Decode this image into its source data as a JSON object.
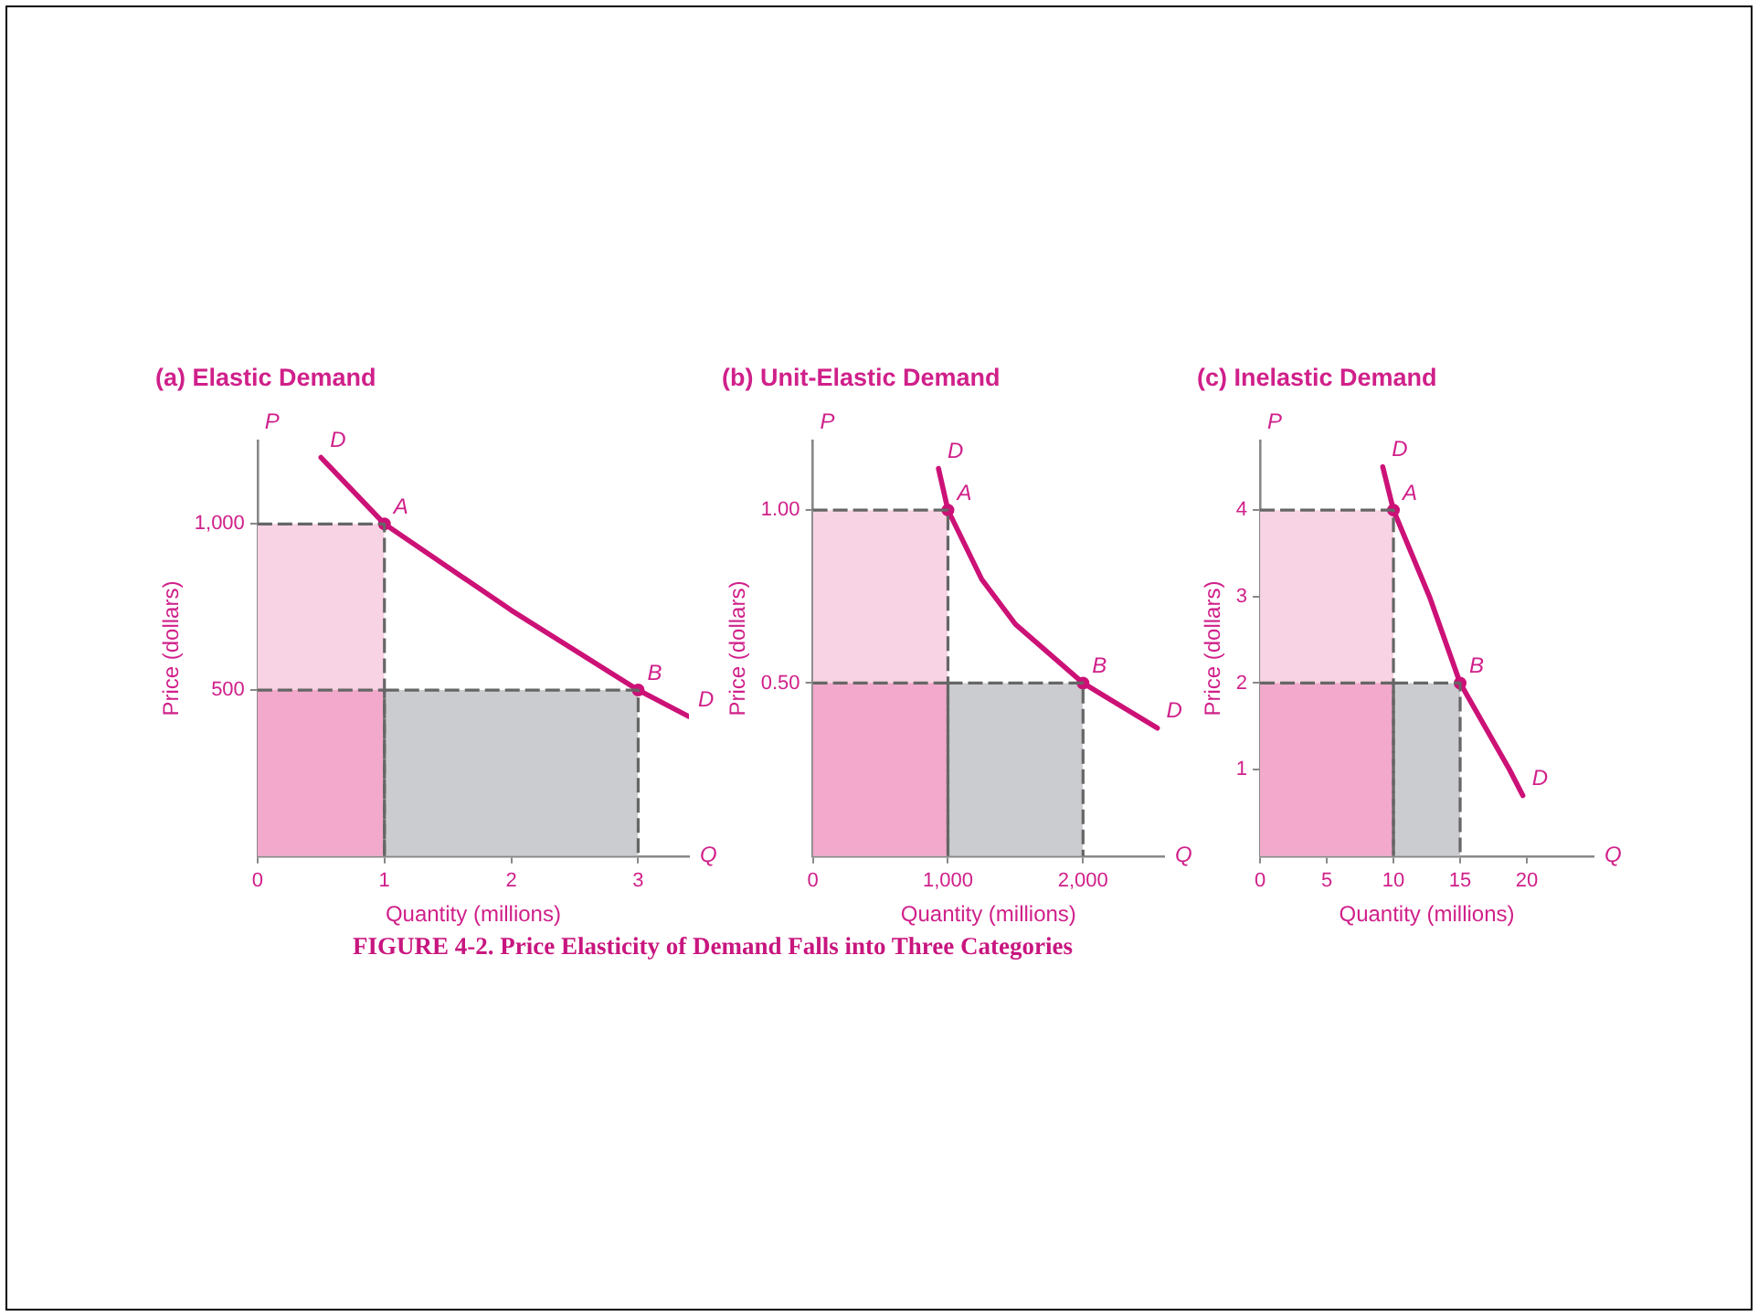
{
  "chart_data": [
    {
      "type": "line",
      "title": "(a) Elastic Demand",
      "xlabel": "Quantity (millions)",
      "ylabel": "Price (dollars)",
      "grid": false,
      "legend": false,
      "xlim": [
        0,
        3.4
      ],
      "ylim": [
        0,
        1250
      ],
      "xticks": [
        0,
        1,
        2,
        3
      ],
      "yticks": [
        500,
        {
          "value": 1000,
          "label": "1,000"
        }
      ],
      "series": [
        {
          "type": "area",
          "color": "#f8d3e3",
          "line_style": "dashed",
          "x": [
            0,
            1
          ],
          "values": [
            1000,
            1000
          ]
        },
        {
          "type": "area",
          "color": "#f2a9cb",
          "line_style": "dashed",
          "x": [
            0,
            1
          ],
          "values": [
            500,
            500
          ]
        },
        {
          "type": "area",
          "color": "#cbcccf",
          "line_style": "dashed",
          "x": [
            1,
            3
          ],
          "values": [
            500,
            500
          ]
        },
        {
          "color": "#cc1177",
          "line_style": "solid",
          "marker": "none",
          "x": [
            0.5,
            1,
            2,
            3,
            3.4
          ],
          "values": [
            1200,
            1000,
            740,
            500,
            420
          ]
        },
        {
          "type": "scatter",
          "color": "#cc1177",
          "marker": "circle",
          "x": [
            1,
            3
          ],
          "values": [
            1000,
            500
          ]
        }
      ],
      "annotations": [
        "P",
        "Q",
        {
          "text": "D",
          "x": 0.5,
          "y": 1200
        },
        {
          "text": "A",
          "x": 1,
          "y": 1000
        },
        {
          "text": "B",
          "x": 3,
          "y": 500
        },
        {
          "text": "D",
          "x": 3.4,
          "y": 420
        }
      ]
    },
    {
      "type": "line",
      "title": "(b) Unit-Elastic Demand",
      "xlabel": "Quantity (millions)",
      "ylabel": "Price (dollars)",
      "grid": false,
      "legend": false,
      "xlim": [
        0,
        2600
      ],
      "ylim": [
        0,
        1.2
      ],
      "xticks": [
        0,
        {
          "value": 1000,
          "label": "1,000"
        },
        {
          "value": 2000,
          "label": "2,000"
        }
      ],
      "yticks": [
        {
          "value": 0.5,
          "label": "0.50"
        },
        {
          "value": 1,
          "label": "1.00"
        }
      ],
      "series": [
        {
          "type": "area",
          "color": "#f8d3e3",
          "line_style": "dashed",
          "x": [
            0,
            1000
          ],
          "values": [
            1,
            1
          ]
        },
        {
          "type": "area",
          "color": "#f2a9cb",
          "line_style": "dashed",
          "x": [
            0,
            1000
          ],
          "values": [
            0.5,
            0.5
          ]
        },
        {
          "type": "area",
          "color": "#cbcccf",
          "line_style": "dashed",
          "x": [
            1000,
            2000
          ],
          "values": [
            0.5,
            0.5
          ]
        },
        {
          "color": "#cc1177",
          "line_style": "solid",
          "marker": "none",
          "x": [
            930,
            1000,
            1250,
            1500,
            2000,
            2550
          ],
          "values": [
            1.12,
            1,
            0.8,
            0.67,
            0.5,
            0.37
          ]
        },
        {
          "type": "scatter",
          "color": "#cc1177",
          "marker": "circle",
          "x": [
            1000,
            2000
          ],
          "values": [
            1,
            0.5
          ]
        }
      ],
      "annotations": [
        "P",
        "Q",
        {
          "text": "D",
          "x": 930,
          "y": 1.12
        },
        {
          "text": "A",
          "x": 1000,
          "y": 1
        },
        {
          "text": "B",
          "x": 2000,
          "y": 0.5
        },
        {
          "text": "D",
          "x": 2550,
          "y": 0.37
        }
      ]
    },
    {
      "type": "line",
      "title": "(c) Inelastic Demand",
      "xlabel": "Quantity (millions)",
      "ylabel": "Price (dollars)",
      "grid": false,
      "legend": false,
      "xlim": [
        0,
        25
      ],
      "ylim": [
        0,
        4.8
      ],
      "xticks": [
        0,
        5,
        10,
        15,
        20
      ],
      "yticks": [
        1,
        2,
        3,
        4
      ],
      "series": [
        {
          "type": "area",
          "color": "#f8d3e3",
          "line_style": "dashed",
          "x": [
            0,
            10
          ],
          "values": [
            4,
            4
          ]
        },
        {
          "type": "area",
          "color": "#f2a9cb",
          "line_style": "dashed",
          "x": [
            0,
            10
          ],
          "values": [
            2,
            2
          ]
        },
        {
          "type": "area",
          "color": "#cbcccf",
          "line_style": "dashed",
          "x": [
            10,
            15
          ],
          "values": [
            2,
            2
          ]
        },
        {
          "color": "#cc1177",
          "line_style": "solid",
          "marker": "none",
          "x": [
            9.2,
            10,
            12.7,
            15,
            18.7,
            19.7
          ],
          "values": [
            4.5,
            4,
            3,
            2,
            1,
            0.7
          ]
        },
        {
          "type": "scatter",
          "color": "#cc1177",
          "marker": "circle",
          "x": [
            10,
            15
          ],
          "values": [
            4,
            2
          ]
        }
      ],
      "annotations": [
        "P",
        "Q",
        {
          "text": "D",
          "x": 9.2,
          "y": 4.5
        },
        {
          "text": "A",
          "x": 10,
          "y": 4
        },
        {
          "text": "B",
          "x": 15,
          "y": 2
        },
        {
          "text": "D",
          "x": 19.7,
          "y": 0.7
        },
        "FIGURE 4-2. Price Elasticity of Demand Falls into Three Categories"
      ]
    }
  ]
}
